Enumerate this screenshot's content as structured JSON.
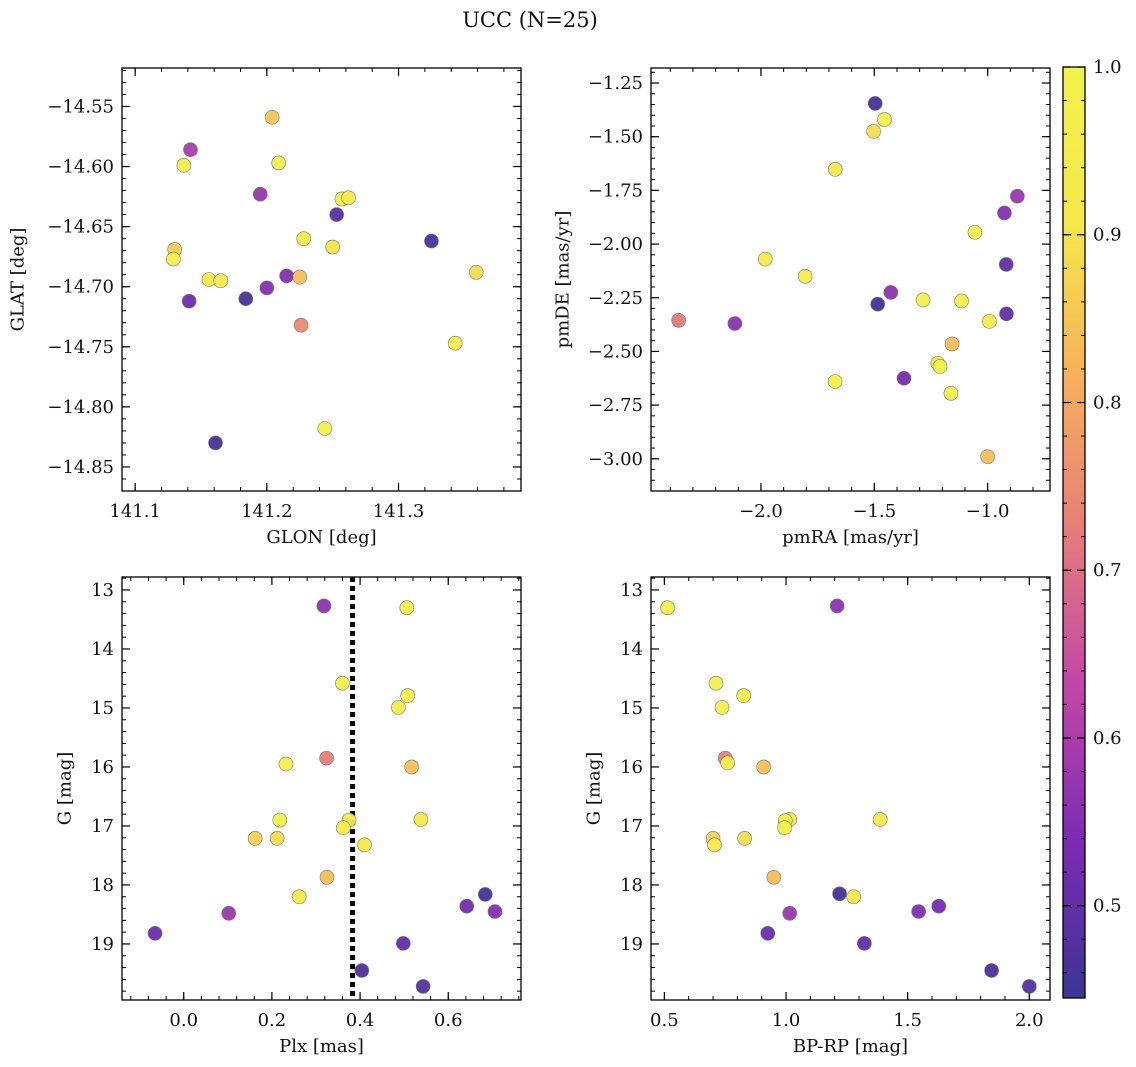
{
  "figure": {
    "title": "UCC (N=25)"
  },
  "colorbar": {
    "range": [
      0.445,
      1.0
    ],
    "ticks": [
      0.5,
      0.6,
      0.7,
      0.8,
      0.9,
      1.0
    ],
    "tick_labels": [
      "0.5",
      "0.6",
      "0.7",
      "0.8",
      "0.9",
      "1.0"
    ],
    "colormap": "plasma",
    "stops": [
      "#3c3594",
      "#7b2bb4",
      "#c146a8",
      "#e57c7a",
      "#f7b05c",
      "#f5e84a",
      "#f2f24a"
    ]
  },
  "chart_data": [
    {
      "type": "scatter",
      "title": "",
      "xlabel": "GLON [deg]",
      "ylabel": "GLAT [deg]",
      "xlim": [
        141.09,
        141.393
      ],
      "ylim": [
        -14.87,
        -14.518
      ],
      "y_inverted": false,
      "xticks": [
        141.1,
        141.2,
        141.3
      ],
      "xtick_labels": [
        "141.1",
        "141.2",
        "141.3"
      ],
      "yticks": [
        -14.55,
        -14.6,
        -14.65,
        -14.7,
        -14.75,
        -14.8,
        -14.85
      ],
      "ytick_labels": [
        "−14.55",
        "−14.60",
        "−14.65",
        "−14.70",
        "−14.75",
        "−14.80",
        "−14.85"
      ],
      "points": [
        {
          "x": 141.204,
          "y": -14.559,
          "c": 0.85
        },
        {
          "x": 141.142,
          "y": -14.586,
          "c": 0.6
        },
        {
          "x": 141.137,
          "y": -14.599,
          "c": 0.96
        },
        {
          "x": 141.209,
          "y": -14.597,
          "c": 0.97
        },
        {
          "x": 141.195,
          "y": -14.623,
          "c": 0.58
        },
        {
          "x": 141.257,
          "y": -14.627,
          "c": 0.99
        },
        {
          "x": 141.262,
          "y": -14.626,
          "c": 0.92
        },
        {
          "x": 141.253,
          "y": -14.64,
          "c": 0.48
        },
        {
          "x": 141.325,
          "y": -14.662,
          "c": 0.47
        },
        {
          "x": 141.228,
          "y": -14.66,
          "c": 0.97
        },
        {
          "x": 141.13,
          "y": -14.669,
          "c": 0.86
        },
        {
          "x": 141.25,
          "y": -14.667,
          "c": 0.9
        },
        {
          "x": 141.129,
          "y": -14.677,
          "c": 0.98
        },
        {
          "x": 141.359,
          "y": -14.688,
          "c": 0.89
        },
        {
          "x": 141.156,
          "y": -14.694,
          "c": 0.92
        },
        {
          "x": 141.165,
          "y": -14.695,
          "c": 0.94
        },
        {
          "x": 141.215,
          "y": -14.691,
          "c": 0.55
        },
        {
          "x": 141.225,
          "y": -14.692,
          "c": 0.84
        },
        {
          "x": 141.2,
          "y": -14.701,
          "c": 0.55
        },
        {
          "x": 141.184,
          "y": -14.71,
          "c": 0.46
        },
        {
          "x": 141.141,
          "y": -14.712,
          "c": 0.52
        },
        {
          "x": 141.226,
          "y": -14.732,
          "c": 0.75
        },
        {
          "x": 141.343,
          "y": -14.747,
          "c": 0.96
        },
        {
          "x": 141.244,
          "y": -14.818,
          "c": 0.98
        },
        {
          "x": 141.161,
          "y": -14.83,
          "c": 0.46
        }
      ]
    },
    {
      "type": "scatter",
      "title": "",
      "xlabel": "pmRA [mas/yr]",
      "ylabel": "pmDE [mas/yr]",
      "xlim": [
        -2.485,
        -0.725
      ],
      "ylim": [
        -3.15,
        -1.18
      ],
      "y_inverted": false,
      "xticks": [
        -2.0,
        -1.5,
        -1.0
      ],
      "xtick_labels": [
        "−2.0",
        "−1.5",
        "−1.0"
      ],
      "yticks": [
        -1.25,
        -1.5,
        -1.75,
        -2.0,
        -2.25,
        -2.5,
        -2.75,
        -3.0
      ],
      "ytick_labels": [
        "−1.25",
        "−1.50",
        "−1.75",
        "−2.00",
        "−2.25",
        "−2.50",
        "−2.75",
        "−3.00"
      ],
      "points": [
        {
          "x": -1.496,
          "y": -1.345,
          "c": 0.46
        },
        {
          "x": -1.455,
          "y": -1.42,
          "c": 0.96
        },
        {
          "x": -1.503,
          "y": -1.475,
          "c": 0.89
        },
        {
          "x": -1.672,
          "y": -1.652,
          "c": 0.91
        },
        {
          "x": -0.869,
          "y": -1.777,
          "c": 0.58
        },
        {
          "x": -0.926,
          "y": -1.855,
          "c": 0.55
        },
        {
          "x": -1.056,
          "y": -1.945,
          "c": 0.98
        },
        {
          "x": -1.981,
          "y": -2.07,
          "c": 0.92
        },
        {
          "x": -0.918,
          "y": -2.095,
          "c": 0.5
        },
        {
          "x": -1.805,
          "y": -2.15,
          "c": 0.94
        },
        {
          "x": -1.427,
          "y": -2.225,
          "c": 0.56
        },
        {
          "x": -1.285,
          "y": -2.26,
          "c": 0.98
        },
        {
          "x": -1.115,
          "y": -2.265,
          "c": 0.97
        },
        {
          "x": -1.485,
          "y": -2.28,
          "c": 0.46
        },
        {
          "x": -0.917,
          "y": -2.325,
          "c": 0.5
        },
        {
          "x": -2.363,
          "y": -2.355,
          "c": 0.72
        },
        {
          "x": -0.992,
          "y": -2.36,
          "c": 0.95
        },
        {
          "x": -2.115,
          "y": -2.37,
          "c": 0.56
        },
        {
          "x": -1.157,
          "y": -2.465,
          "c": 0.84
        },
        {
          "x": -1.22,
          "y": -2.555,
          "c": 0.92
        },
        {
          "x": -1.21,
          "y": -2.57,
          "c": 0.99
        },
        {
          "x": -1.369,
          "y": -2.625,
          "c": 0.53
        },
        {
          "x": -1.673,
          "y": -2.64,
          "c": 0.98
        },
        {
          "x": -1.162,
          "y": -2.695,
          "c": 0.97
        },
        {
          "x": -1.0,
          "y": -2.99,
          "c": 0.84
        }
      ]
    },
    {
      "type": "scatter",
      "title": "",
      "xlabel": "Plx [mas]",
      "ylabel": "G [mag]",
      "xlim": [
        -0.14,
        0.765
      ],
      "ylim": [
        19.95,
        12.78
      ],
      "y_inverted": true,
      "xticks": [
        0.0,
        0.2,
        0.4,
        0.6
      ],
      "xtick_labels": [
        "0.0",
        "0.2",
        "0.4",
        "0.6"
      ],
      "yticks": [
        13,
        14,
        15,
        16,
        17,
        18,
        19
      ],
      "ytick_labels": [
        "13",
        "14",
        "15",
        "16",
        "17",
        "18",
        "19"
      ],
      "vline": {
        "x": 0.383,
        "style": "dotted"
      },
      "points": [
        {
          "x": 0.318,
          "y": 13.27,
          "c": 0.56
        },
        {
          "x": 0.506,
          "y": 13.3,
          "c": 0.99
        },
        {
          "x": 0.36,
          "y": 14.58,
          "c": 0.98
        },
        {
          "x": 0.508,
          "y": 14.79,
          "c": 0.97
        },
        {
          "x": 0.487,
          "y": 14.99,
          "c": 0.93
        },
        {
          "x": 0.232,
          "y": 15.95,
          "c": 0.97
        },
        {
          "x": 0.324,
          "y": 15.85,
          "c": 0.73
        },
        {
          "x": 0.517,
          "y": 16.0,
          "c": 0.84
        },
        {
          "x": 0.218,
          "y": 16.9,
          "c": 0.98
        },
        {
          "x": 0.538,
          "y": 16.89,
          "c": 0.92
        },
        {
          "x": 0.375,
          "y": 16.9,
          "c": 0.93
        },
        {
          "x": 0.362,
          "y": 17.03,
          "c": 0.95
        },
        {
          "x": 0.162,
          "y": 17.21,
          "c": 0.87
        },
        {
          "x": 0.212,
          "y": 17.21,
          "c": 0.89
        },
        {
          "x": 0.41,
          "y": 17.32,
          "c": 0.91
        },
        {
          "x": 0.325,
          "y": 17.87,
          "c": 0.84
        },
        {
          "x": 0.262,
          "y": 18.2,
          "c": 0.92
        },
        {
          "x": 0.684,
          "y": 18.16,
          "c": 0.46
        },
        {
          "x": 0.642,
          "y": 18.36,
          "c": 0.53
        },
        {
          "x": 0.706,
          "y": 18.45,
          "c": 0.55
        },
        {
          "x": 0.102,
          "y": 18.48,
          "c": 0.58
        },
        {
          "x": -0.065,
          "y": 18.82,
          "c": 0.52
        },
        {
          "x": 0.498,
          "y": 18.99,
          "c": 0.5
        },
        {
          "x": 0.404,
          "y": 19.45,
          "c": 0.47
        },
        {
          "x": 0.543,
          "y": 19.72,
          "c": 0.48
        }
      ]
    },
    {
      "type": "scatter",
      "title": "",
      "xlabel": "BP-RP [mag]",
      "ylabel": "G [mag]",
      "xlim": [
        0.445,
        2.085
      ],
      "ylim": [
        19.95,
        12.78
      ],
      "y_inverted": true,
      "xticks": [
        0.5,
        1.0,
        1.5,
        2.0
      ],
      "xtick_labels": [
        "0.5",
        "1.0",
        "1.5",
        "2.0"
      ],
      "yticks": [
        13,
        14,
        15,
        16,
        17,
        18,
        19
      ],
      "ytick_labels": [
        "13",
        "14",
        "15",
        "16",
        "17",
        "18",
        "19"
      ],
      "points": [
        {
          "x": 0.513,
          "y": 13.3,
          "c": 0.99
        },
        {
          "x": 1.21,
          "y": 13.27,
          "c": 0.56
        },
        {
          "x": 0.712,
          "y": 14.58,
          "c": 0.98
        },
        {
          "x": 0.826,
          "y": 14.79,
          "c": 0.97
        },
        {
          "x": 0.737,
          "y": 14.99,
          "c": 0.99
        },
        {
          "x": 0.75,
          "y": 15.85,
          "c": 0.73
        },
        {
          "x": 0.76,
          "y": 15.93,
          "c": 0.98
        },
        {
          "x": 0.908,
          "y": 16.0,
          "c": 0.84
        },
        {
          "x": 1.015,
          "y": 16.89,
          "c": 0.95
        },
        {
          "x": 0.997,
          "y": 16.91,
          "c": 0.99
        },
        {
          "x": 1.387,
          "y": 16.89,
          "c": 0.91
        },
        {
          "x": 0.994,
          "y": 17.03,
          "c": 0.97
        },
        {
          "x": 0.7,
          "y": 17.21,
          "c": 0.87
        },
        {
          "x": 0.83,
          "y": 17.21,
          "c": 0.89
        },
        {
          "x": 0.706,
          "y": 17.32,
          "c": 0.91
        },
        {
          "x": 0.95,
          "y": 17.87,
          "c": 0.84
        },
        {
          "x": 1.22,
          "y": 18.15,
          "c": 0.46
        },
        {
          "x": 1.278,
          "y": 18.2,
          "c": 0.92
        },
        {
          "x": 1.628,
          "y": 18.36,
          "c": 0.53
        },
        {
          "x": 1.545,
          "y": 18.45,
          "c": 0.55
        },
        {
          "x": 1.015,
          "y": 18.48,
          "c": 0.58
        },
        {
          "x": 0.925,
          "y": 18.82,
          "c": 0.52
        },
        {
          "x": 1.322,
          "y": 18.99,
          "c": 0.5
        },
        {
          "x": 1.845,
          "y": 19.45,
          "c": 0.47
        },
        {
          "x": 2.0,
          "y": 19.72,
          "c": 0.48
        }
      ]
    }
  ]
}
